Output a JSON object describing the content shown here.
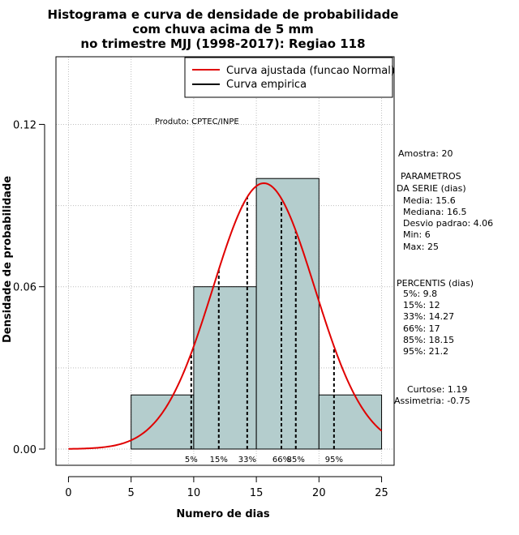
{
  "chart_data": {
    "type": "bar",
    "title_lines": [
      "Histograma e curva de densidade de probabilidade",
      "com chuva acima de 5 mm",
      "no trimestre MJJ (1998-2017): Regiao 118"
    ],
    "xlabel": "Numero de dias",
    "ylabel": "Densidade de probabilidade",
    "xlim": [
      -1,
      26
    ],
    "ylim": [
      -0.006,
      0.145
    ],
    "xticks": [
      0,
      5,
      10,
      15,
      20,
      25
    ],
    "yticks": [
      0.0,
      0.06,
      0.12
    ],
    "ytick_labels": [
      "0.00",
      "0.06",
      "0.12"
    ],
    "grid": true,
    "bins": [
      {
        "start": 5,
        "end": 10,
        "density": 0.02
      },
      {
        "start": 10,
        "end": 15,
        "density": 0.06
      },
      {
        "start": 15,
        "end": 20,
        "density": 0.1
      },
      {
        "start": 20,
        "end": 25,
        "density": 0.02
      }
    ],
    "normal_curve": {
      "mean": 15.6,
      "sd": 4.06,
      "x_from": 0,
      "x_to": 25
    },
    "percentile_lines": [
      {
        "label": "5%",
        "x": 9.8
      },
      {
        "label": "15%",
        "x": 12
      },
      {
        "label": "33%",
        "x": 14.27
      },
      {
        "label": "66%",
        "x": 17
      },
      {
        "label": "85%",
        "x": 18.15
      },
      {
        "label": "95%",
        "x": 21.2
      }
    ],
    "legend": {
      "placement": "top-right",
      "entries": [
        {
          "label": "Curva ajustada (funcao Normal)",
          "color": "#e00000"
        },
        {
          "label": "Curva empirica",
          "color": "#000000"
        }
      ]
    },
    "annotation": "Produto: CPTEC/INPE",
    "colors": {
      "bar_fill": "#b4cdcd",
      "curve": "#e00000",
      "grid": "#bebebe"
    }
  },
  "stats": {
    "amostra": "Amostra: 20",
    "parametros_title_1": "PARAMETROS",
    "parametros_title_2": "DA SERIE (dias)",
    "media": "Media: 15.6",
    "mediana": "Mediana: 16.5",
    "desvio": "Desvio padrao: 4.06",
    "min": "Min: 6",
    "max": "Max: 25",
    "percentis_title": "PERCENTIS (dias)",
    "p5": "5%: 9.8",
    "p15": "15%: 12",
    "p33": "33%: 14.27",
    "p66": "66%: 17",
    "p85": "85%: 18.15",
    "p95": "95%: 21.2",
    "curtose": "Curtose: 1.19",
    "assimetria": "Assimetria: -0.75"
  }
}
